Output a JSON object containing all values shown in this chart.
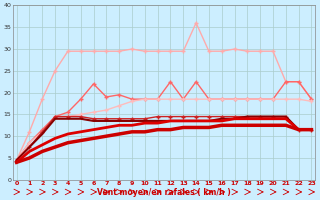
{
  "xlabel": "Vent moyen/en rafales ( km/h )",
  "bg_color": "#cceeff",
  "grid_color": "#aacccc",
  "x": [
    0,
    1,
    2,
    3,
    4,
    5,
    6,
    7,
    8,
    9,
    10,
    11,
    12,
    13,
    14,
    15,
    16,
    17,
    18,
    19,
    20,
    21,
    22,
    23
  ],
  "series": [
    {
      "y": [
        4.5,
        11.0,
        18.5,
        25.0,
        29.5,
        29.5,
        29.5,
        29.5,
        29.5,
        30.0,
        29.5,
        29.5,
        29.5,
        29.5,
        36.0,
        29.5,
        29.5,
        30.0,
        29.5,
        29.5,
        29.5,
        22.5,
        22.5,
        18.5
      ],
      "color": "#ffaaaa",
      "lw": 1.0,
      "marker": "+",
      "ms": 3.5
    },
    {
      "y": [
        4.5,
        8.5,
        11.5,
        14.5,
        15.5,
        18.5,
        22.0,
        19.0,
        19.5,
        18.5,
        18.5,
        18.5,
        22.5,
        18.5,
        22.5,
        18.5,
        18.5,
        18.5,
        18.5,
        18.5,
        18.5,
        22.5,
        22.5,
        18.5
      ],
      "color": "#ff6666",
      "lw": 1.0,
      "marker": "+",
      "ms": 3.5
    },
    {
      "y": [
        4.5,
        8.5,
        11.0,
        14.5,
        14.5,
        15.0,
        15.5,
        16.0,
        17.0,
        18.0,
        18.5,
        18.5,
        18.5,
        18.5,
        18.5,
        18.5,
        18.5,
        18.5,
        18.5,
        18.5,
        18.5,
        18.5,
        18.5,
        18.0
      ],
      "color": "#ffbbbb",
      "lw": 1.0,
      "marker": "+",
      "ms": 3.5
    },
    {
      "y": [
        4.5,
        7.5,
        11.0,
        14.5,
        14.5,
        14.5,
        14.0,
        14.0,
        14.0,
        14.0,
        14.0,
        14.5,
        14.5,
        14.5,
        14.5,
        14.5,
        14.5,
        14.5,
        14.5,
        14.5,
        14.5,
        14.5,
        11.5,
        11.5
      ],
      "color": "#cc2222",
      "lw": 1.0,
      "marker": "+",
      "ms": 3.5
    },
    {
      "y": [
        4.5,
        7.5,
        10.5,
        14.0,
        14.0,
        14.0,
        13.5,
        13.5,
        13.5,
        13.5,
        13.5,
        13.5,
        13.5,
        13.5,
        13.5,
        13.5,
        14.0,
        14.0,
        14.5,
        14.5,
        14.5,
        14.5,
        11.5,
        11.5
      ],
      "color": "#880000",
      "lw": 1.5,
      "marker": null,
      "ms": 0
    },
    {
      "y": [
        4.0,
        6.5,
        8.0,
        9.5,
        10.5,
        11.0,
        11.5,
        12.0,
        12.5,
        12.5,
        13.0,
        13.0,
        13.5,
        13.5,
        13.5,
        13.5,
        13.5,
        14.0,
        14.0,
        14.0,
        14.0,
        14.0,
        11.5,
        11.5
      ],
      "color": "#dd0000",
      "lw": 2.0,
      "marker": null,
      "ms": 0
    },
    {
      "y": [
        4.0,
        5.0,
        6.5,
        7.5,
        8.5,
        9.0,
        9.5,
        10.0,
        10.5,
        11.0,
        11.0,
        11.5,
        11.5,
        12.0,
        12.0,
        12.0,
        12.5,
        12.5,
        12.5,
        12.5,
        12.5,
        12.5,
        11.5,
        11.5
      ],
      "color": "#cc0000",
      "lw": 2.5,
      "marker": null,
      "ms": 0
    }
  ],
  "xlim": [
    -0.3,
    23.3
  ],
  "ylim": [
    0,
    40
  ],
  "yticks": [
    0,
    5,
    10,
    15,
    20,
    25,
    30,
    35,
    40
  ],
  "xticks": [
    0,
    1,
    2,
    3,
    4,
    5,
    6,
    7,
    8,
    9,
    10,
    11,
    12,
    13,
    14,
    15,
    16,
    17,
    18,
    19,
    20,
    21,
    22,
    23
  ],
  "tick_fontsize": 4.5,
  "xlabel_fontsize": 5.5,
  "ytick_fontsize": 4.5
}
